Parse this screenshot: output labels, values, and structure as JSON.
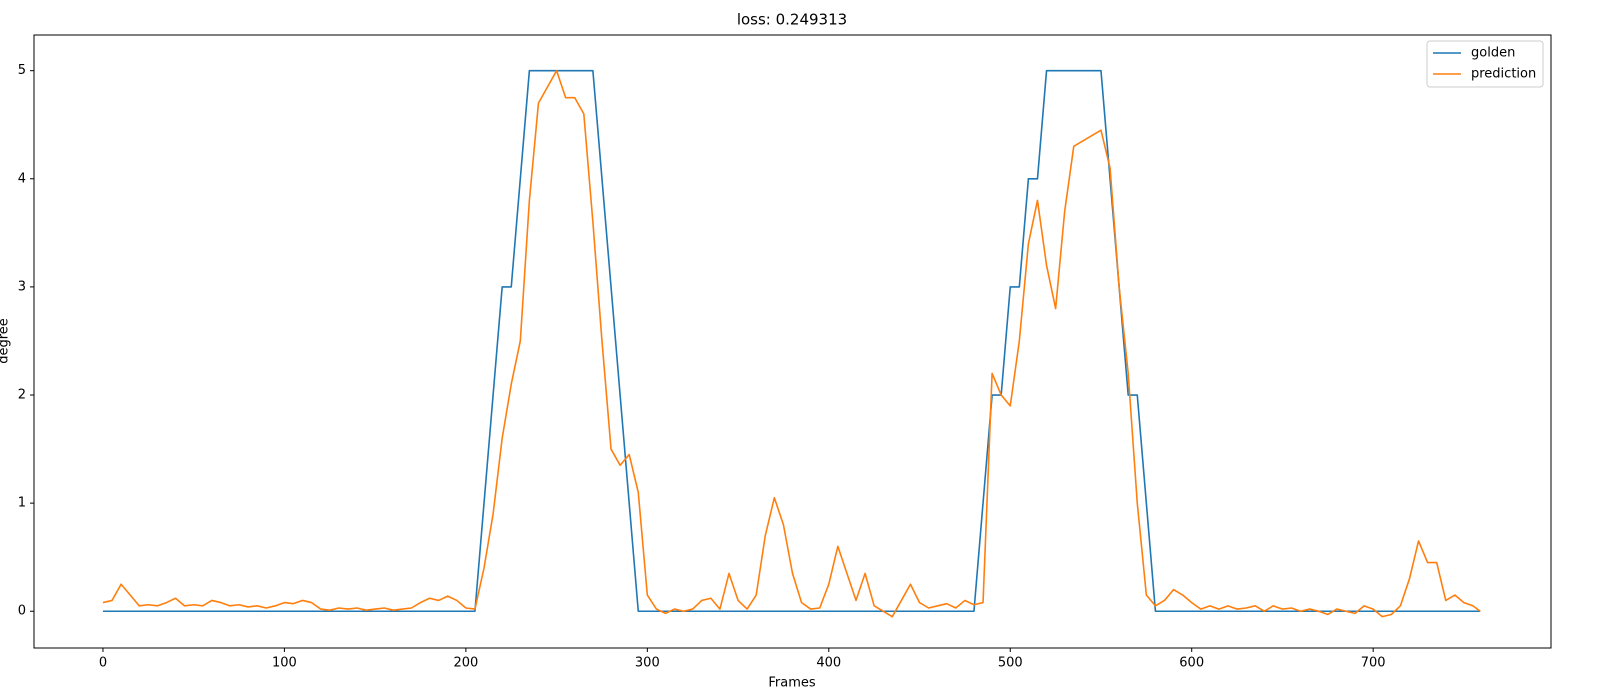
{
  "chart_data": {
    "type": "line",
    "title": "loss: 0.249313",
    "x_label": "Frames",
    "y_label": "degree",
    "x": [
      0,
      5,
      10,
      15,
      20,
      25,
      30,
      35,
      40,
      45,
      50,
      55,
      60,
      65,
      70,
      75,
      80,
      85,
      90,
      95,
      100,
      105,
      110,
      115,
      120,
      125,
      130,
      135,
      140,
      145,
      150,
      155,
      160,
      165,
      170,
      175,
      180,
      185,
      190,
      195,
      200,
      205,
      210,
      215,
      220,
      225,
      230,
      235,
      240,
      245,
      250,
      255,
      260,
      265,
      270,
      275,
      280,
      285,
      290,
      295,
      300,
      305,
      310,
      315,
      320,
      325,
      330,
      335,
      340,
      345,
      350,
      355,
      360,
      365,
      370,
      375,
      380,
      385,
      390,
      395,
      400,
      405,
      410,
      415,
      420,
      425,
      430,
      435,
      440,
      445,
      450,
      455,
      460,
      465,
      470,
      475,
      480,
      485,
      490,
      495,
      500,
      505,
      510,
      515,
      520,
      525,
      530,
      535,
      540,
      545,
      550,
      555,
      560,
      565,
      570,
      575,
      580,
      585,
      590,
      595,
      600,
      605,
      610,
      615,
      620,
      625,
      630,
      635,
      640,
      645,
      650,
      655,
      660,
      665,
      670,
      675,
      680,
      685,
      690,
      695,
      700,
      705,
      710,
      715,
      720,
      725,
      730,
      735,
      740,
      745,
      750,
      755,
      759
    ],
    "series": [
      {
        "name": "golden",
        "color": "#1f77b4",
        "values": [
          0,
          0,
          0,
          0,
          0,
          0,
          0,
          0,
          0,
          0,
          0,
          0,
          0,
          0,
          0,
          0,
          0,
          0,
          0,
          0,
          0,
          0,
          0,
          0,
          0,
          0,
          0,
          0,
          0,
          0,
          0,
          0,
          0,
          0,
          0,
          0,
          0,
          0,
          0,
          0,
          0,
          0,
          1,
          2,
          3,
          3,
          4,
          5,
          5,
          5,
          5,
          5,
          5,
          5,
          5,
          4,
          3,
          2,
          1,
          0,
          0,
          0,
          0,
          0,
          0,
          0,
          0,
          0,
          0,
          0,
          0,
          0,
          0,
          0,
          0,
          0,
          0,
          0,
          0,
          0,
          0,
          0,
          0,
          0,
          0,
          0,
          0,
          0,
          0,
          0,
          0,
          0,
          0,
          0,
          0,
          0,
          0,
          1,
          2,
          2,
          3,
          3,
          4,
          4,
          5,
          5,
          5,
          5,
          5,
          5,
          5,
          4,
          3,
          2,
          2,
          1,
          0,
          0,
          0,
          0,
          0,
          0,
          0,
          0,
          0,
          0,
          0,
          0,
          0,
          0,
          0,
          0,
          0,
          0,
          0,
          0,
          0,
          0,
          0,
          0,
          0,
          0,
          0,
          0,
          0,
          0,
          0,
          0,
          0,
          0,
          0,
          0,
          0
        ]
      },
      {
        "name": "prediction",
        "color": "#ff7f0e",
        "values": [
          0.08,
          0.1,
          0.25,
          0.15,
          0.05,
          0.06,
          0.05,
          0.08,
          0.12,
          0.05,
          0.06,
          0.05,
          0.1,
          0.08,
          0.05,
          0.06,
          0.04,
          0.05,
          0.03,
          0.05,
          0.08,
          0.07,
          0.1,
          0.08,
          0.02,
          0.01,
          0.03,
          0.02,
          0.03,
          0.01,
          0.02,
          0.03,
          0.01,
          0.02,
          0.03,
          0.08,
          0.12,
          0.1,
          0.14,
          0.1,
          0.03,
          0.02,
          0.4,
          0.9,
          1.6,
          2.1,
          2.5,
          3.8,
          4.7,
          4.85,
          5.0,
          4.75,
          4.75,
          4.6,
          3.6,
          2.5,
          1.5,
          1.35,
          1.45,
          1.1,
          0.15,
          0.02,
          -0.02,
          0.02,
          0.0,
          0.02,
          0.1,
          0.12,
          0.02,
          0.35,
          0.1,
          0.02,
          0.15,
          0.7,
          1.05,
          0.8,
          0.35,
          0.08,
          0.02,
          0.03,
          0.25,
          0.6,
          0.35,
          0.1,
          0.35,
          0.05,
          0.0,
          -0.05,
          0.1,
          0.25,
          0.08,
          0.03,
          0.05,
          0.07,
          0.03,
          0.1,
          0.06,
          0.08,
          2.2,
          2.0,
          1.9,
          2.5,
          3.4,
          3.8,
          3.2,
          2.8,
          3.7,
          4.3,
          4.35,
          4.4,
          4.45,
          4.1,
          3.0,
          2.2,
          1.0,
          0.15,
          0.05,
          0.1,
          0.2,
          0.15,
          0.08,
          0.02,
          0.05,
          0.02,
          0.05,
          0.02,
          0.03,
          0.05,
          0.0,
          0.05,
          0.02,
          0.03,
          0.0,
          0.02,
          0.0,
          -0.03,
          0.02,
          0.0,
          -0.02,
          0.05,
          0.02,
          -0.05,
          -0.03,
          0.05,
          0.3,
          0.65,
          0.45,
          0.45,
          0.1,
          0.15,
          0.08,
          0.05,
          0.0
        ]
      }
    ],
    "xlim": [
      -38,
      798
    ],
    "ylim": [
      -0.34,
      5.33
    ],
    "xticks": [
      0,
      100,
      200,
      300,
      400,
      500,
      600,
      700
    ],
    "yticks": [
      0,
      1,
      2,
      3,
      4,
      5
    ],
    "legend": "upper right"
  }
}
